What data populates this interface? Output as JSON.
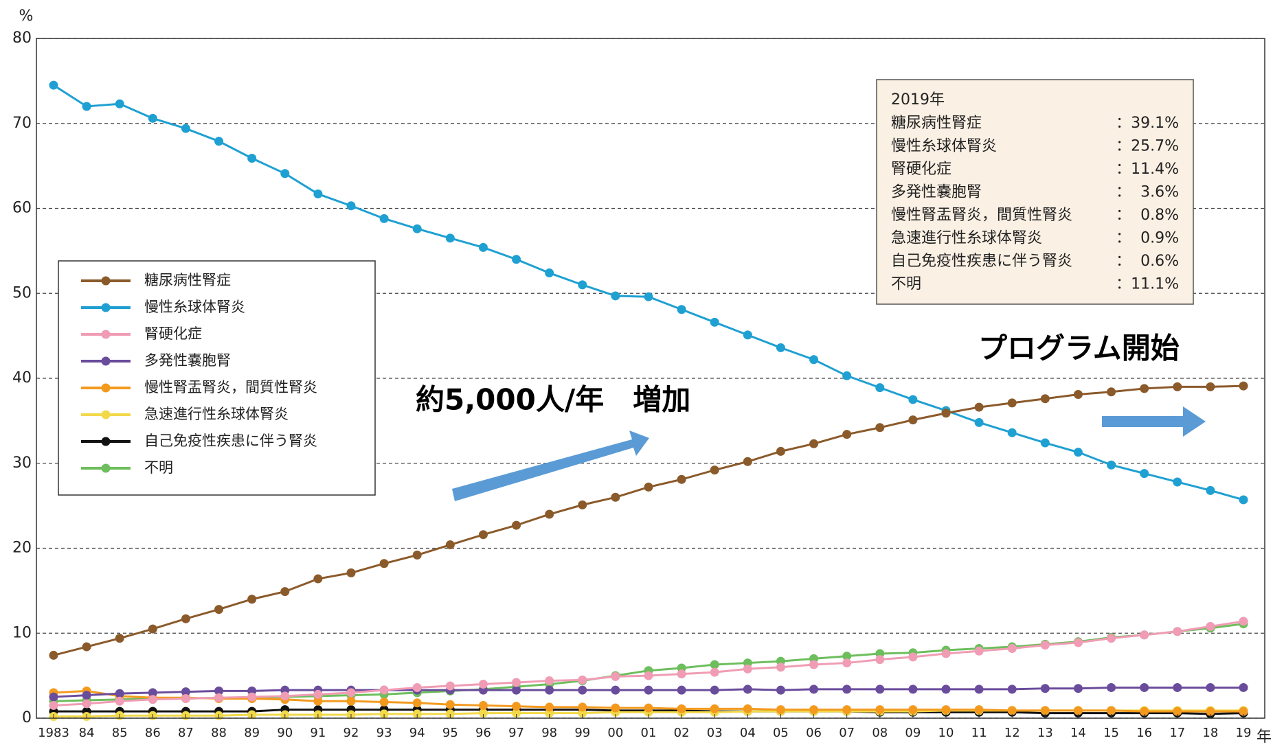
{
  "chart_data": {
    "type": "line",
    "y_unit": "%",
    "x_unit": "年",
    "categories": [
      "1983",
      "84",
      "85",
      "86",
      "87",
      "88",
      "89",
      "90",
      "91",
      "92",
      "93",
      "94",
      "95",
      "96",
      "97",
      "98",
      "99",
      "00",
      "01",
      "02",
      "03",
      "04",
      "05",
      "06",
      "07",
      "08",
      "09",
      "10",
      "11",
      "12",
      "13",
      "14",
      "15",
      "16",
      "17",
      "18",
      "19"
    ],
    "ylim": [
      0,
      80
    ],
    "yticks": [
      0,
      10,
      20,
      30,
      40,
      50,
      60,
      70,
      80
    ],
    "grid": true,
    "series": [
      {
        "name": "糖尿病性腎症",
        "color": "#8b5a2b",
        "values": [
          7.4,
          8.4,
          9.4,
          10.5,
          11.7,
          12.8,
          14.0,
          14.9,
          16.4,
          17.1,
          18.2,
          19.2,
          20.4,
          21.6,
          22.7,
          24.0,
          25.1,
          26.0,
          27.2,
          28.1,
          29.2,
          30.2,
          31.4,
          32.3,
          33.4,
          34.2,
          35.1,
          35.9,
          36.6,
          37.1,
          37.6,
          38.1,
          38.4,
          38.8,
          39.0,
          39.0,
          39.1
        ]
      },
      {
        "name": "慢性糸球体腎炎",
        "color": "#1fa0d2",
        "values": [
          74.5,
          72.0,
          72.3,
          70.6,
          69.4,
          67.9,
          65.9,
          64.1,
          61.7,
          60.3,
          58.8,
          57.6,
          56.5,
          55.4,
          54.0,
          52.4,
          51.0,
          49.7,
          49.6,
          48.1,
          46.6,
          45.1,
          43.6,
          42.2,
          40.3,
          38.9,
          37.5,
          36.2,
          34.8,
          33.6,
          32.4,
          31.3,
          29.8,
          28.8,
          27.8,
          26.8,
          25.7
        ]
      },
      {
        "name": "腎硬化症",
        "color": "#f09cb4",
        "values": [
          1.5,
          1.7,
          2.0,
          2.2,
          2.3,
          2.4,
          2.5,
          2.6,
          2.8,
          3.0,
          3.3,
          3.6,
          3.8,
          4.0,
          4.2,
          4.4,
          4.5,
          4.9,
          5.0,
          5.2,
          5.4,
          5.8,
          6.0,
          6.3,
          6.5,
          6.9,
          7.2,
          7.6,
          7.9,
          8.2,
          8.6,
          8.9,
          9.4,
          9.8,
          10.2,
          10.8,
          11.4
        ]
      },
      {
        "name": "多発性嚢胞腎",
        "color": "#6a4c9c",
        "values": [
          2.5,
          2.7,
          2.9,
          3.0,
          3.1,
          3.2,
          3.2,
          3.3,
          3.3,
          3.3,
          3.3,
          3.3,
          3.3,
          3.3,
          3.3,
          3.3,
          3.3,
          3.3,
          3.3,
          3.3,
          3.3,
          3.4,
          3.3,
          3.4,
          3.4,
          3.4,
          3.4,
          3.4,
          3.4,
          3.4,
          3.5,
          3.5,
          3.6,
          3.6,
          3.6,
          3.6,
          3.6
        ]
      },
      {
        "name": "慢性腎盂腎炎，間質性腎炎",
        "color": "#f39a1e",
        "values": [
          3.0,
          3.2,
          2.6,
          2.4,
          2.4,
          2.3,
          2.3,
          2.2,
          2.0,
          2.0,
          1.9,
          1.8,
          1.6,
          1.5,
          1.4,
          1.3,
          1.3,
          1.2,
          1.2,
          1.1,
          1.1,
          1.1,
          1.0,
          1.0,
          1.0,
          1.0,
          1.0,
          1.0,
          1.0,
          0.9,
          0.9,
          0.9,
          0.9,
          0.8,
          0.8,
          0.8,
          0.8
        ]
      },
      {
        "name": "急速進行性糸球体腎炎",
        "color": "#f2d94a",
        "values": [
          0.2,
          0.2,
          0.3,
          0.3,
          0.3,
          0.3,
          0.4,
          0.4,
          0.4,
          0.4,
          0.5,
          0.5,
          0.5,
          0.6,
          0.6,
          0.6,
          0.6,
          0.7,
          0.7,
          0.7,
          0.7,
          0.8,
          0.8,
          0.8,
          0.8,
          0.8,
          0.8,
          0.9,
          0.9,
          0.9,
          0.9,
          0.9,
          0.9,
          0.9,
          0.9,
          0.9,
          0.9
        ]
      },
      {
        "name": "自己免疫性疾患に伴う腎炎",
        "color": "#111111",
        "values": [
          0.8,
          0.8,
          0.8,
          0.8,
          0.8,
          0.8,
          0.8,
          1.0,
          1.0,
          1.0,
          1.0,
          1.0,
          1.0,
          1.0,
          1.0,
          1.0,
          1.0,
          0.9,
          0.9,
          0.9,
          0.8,
          0.8,
          0.8,
          0.8,
          0.8,
          0.7,
          0.7,
          0.7,
          0.7,
          0.7,
          0.6,
          0.6,
          0.6,
          0.6,
          0.6,
          0.5,
          0.6
        ]
      },
      {
        "name": "不明",
        "color": "#6dbe5c",
        "values": [
          2.0,
          2.1,
          2.2,
          2.3,
          2.3,
          2.4,
          2.4,
          2.5,
          2.6,
          2.7,
          2.8,
          3.0,
          3.2,
          3.4,
          3.7,
          4.0,
          4.4,
          5.0,
          5.6,
          5.9,
          6.3,
          6.5,
          6.7,
          7.0,
          7.3,
          7.6,
          7.7,
          8.0,
          8.2,
          8.4,
          8.7,
          9.0,
          9.5,
          9.8,
          10.2,
          10.6,
          11.1
        ]
      }
    ],
    "info_box": {
      "title": "2019年",
      "rows": [
        [
          "糖尿病性腎症",
          "：39.1%"
        ],
        [
          "慢性糸球体腎炎",
          "：25.7%"
        ],
        [
          "腎硬化症",
          "：11.4%"
        ],
        [
          "多発性嚢胞腎",
          "：  3.6%"
        ],
        [
          "慢性腎盂腎炎，間質性腎炎",
          "：  0.8%"
        ],
        [
          "急速進行性糸球体腎炎",
          "：  0.9%"
        ],
        [
          "自己免疫性疾患に伴う腎炎",
          "：  0.6%"
        ],
        [
          "不明",
          "：11.1%"
        ]
      ]
    },
    "annotations": [
      "約5,000人/年　増加",
      "プログラム開始"
    ]
  }
}
